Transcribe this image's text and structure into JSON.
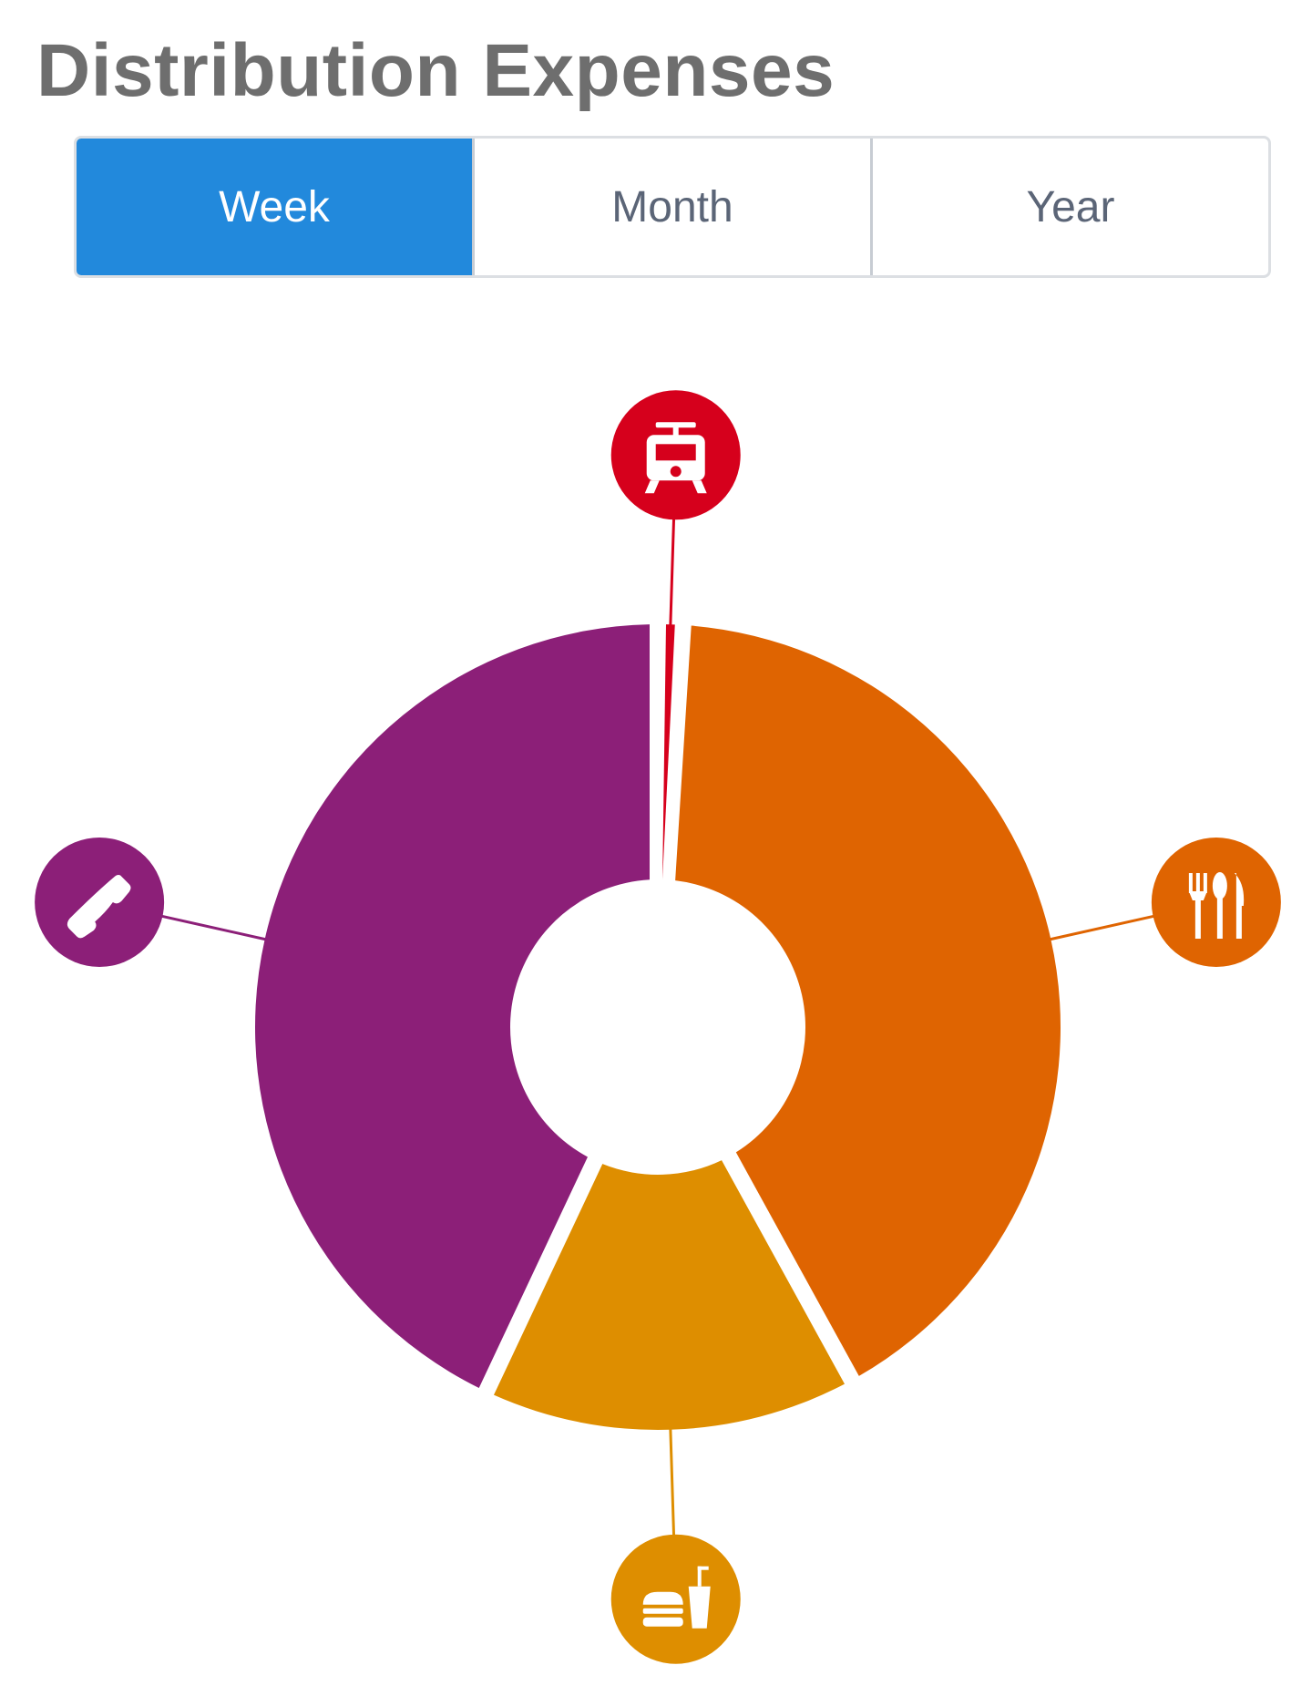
{
  "title": "Distribution Expenses",
  "period_tabs": {
    "items": [
      {
        "label": "Week",
        "active": true
      },
      {
        "label": "Month",
        "active": false
      },
      {
        "label": "Year",
        "active": false
      }
    ],
    "active_color": "#2289dc"
  },
  "chart_data": {
    "type": "pie",
    "variant": "donut",
    "title": "",
    "series": [
      {
        "icon": "tram-icon",
        "value": 1,
        "color": "#d6001c"
      },
      {
        "icon": "cutlery-icon",
        "value": 41,
        "color": "#df6401"
      },
      {
        "icon": "fast-food-icon",
        "value": 15,
        "color": "#de8e00"
      },
      {
        "icon": "phone-icon",
        "value": 43,
        "color": "#8c1f78"
      }
    ]
  }
}
